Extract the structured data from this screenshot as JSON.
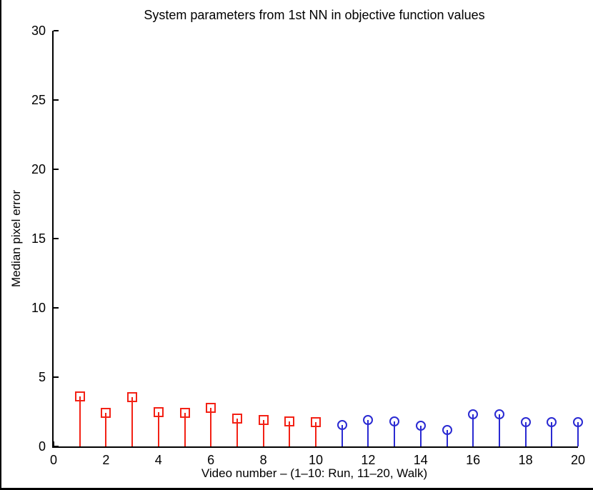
{
  "chart_data": {
    "type": "stem",
    "title": "System parameters from 1st NN in objective function values",
    "xlabel": "Video number – (1–10: Run, 11–20, Walk)",
    "ylabel": "Median pixel error",
    "xlim": [
      0,
      20
    ],
    "ylim": [
      0,
      30
    ],
    "xticks": [
      0,
      2,
      4,
      6,
      8,
      10,
      12,
      14,
      16,
      18,
      20
    ],
    "yticks": [
      0,
      5,
      10,
      15,
      20,
      25,
      30
    ],
    "grid": false,
    "legend": "none",
    "series": [
      {
        "name": "Run (videos 1-10)",
        "color": "#f32115",
        "marker": "square",
        "x": [
          1,
          2,
          3,
          4,
          5,
          6,
          7,
          8,
          9,
          10
        ],
        "values": [
          3.6,
          2.4,
          3.55,
          2.5,
          2.4,
          2.8,
          2.0,
          1.9,
          1.8,
          1.75
        ]
      },
      {
        "name": "Walk (videos 11-20)",
        "color": "#2a2ad2",
        "marker": "circle",
        "x": [
          11,
          12,
          13,
          14,
          15,
          16,
          17,
          18,
          19,
          20
        ],
        "values": [
          1.55,
          1.9,
          1.8,
          1.5,
          1.2,
          2.3,
          2.3,
          1.75,
          1.75,
          1.75
        ]
      }
    ]
  }
}
